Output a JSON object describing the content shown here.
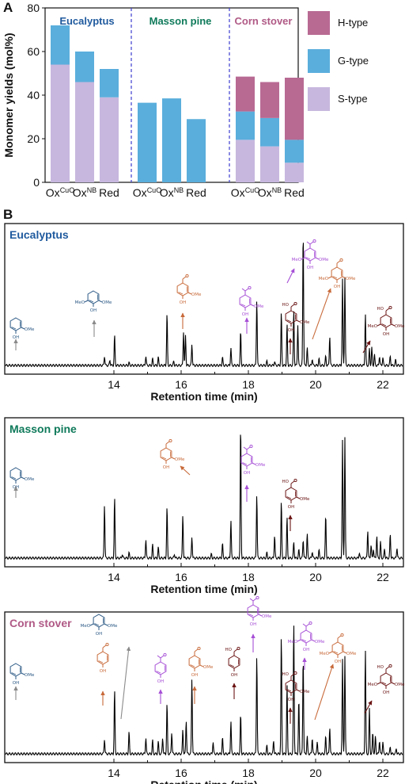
{
  "panel_labels": [
    "A",
    "B"
  ],
  "colors": {
    "H-type": "#b86a93",
    "G-type": "#5aaedc",
    "S-type": "#c7b7de",
    "Eucalyptus": "#1f5a9e",
    "Masson pine": "#0f7a5a",
    "Corn stover": "#b05a86",
    "divider": "#3d3dd0",
    "trace": "#000000",
    "ortho_blue": "#2d5a86",
    "vanillin_orange": "#c86a3a",
    "aceto_purple": "#a64fd6",
    "acid_darkred": "#6b1414",
    "arrow_gray": "#8a8a8a"
  },
  "chart_data": [
    {
      "type": "bar",
      "stacked": true,
      "ylabel": "Monomer yields (mol%)",
      "ylim": [
        0,
        80
      ],
      "yticks": [
        0,
        20,
        40,
        60,
        80
      ],
      "groups": [
        {
          "name": "Eucalyptus",
          "categories": [
            "Ox",
            "Ox",
            "Red"
          ],
          "cat_sup": [
            "CuO",
            "NB",
            ""
          ]
        },
        {
          "name": "Masson pine",
          "categories": [
            "Ox",
            "Ox",
            "Red"
          ],
          "cat_sup": [
            "CuO",
            "NB",
            ""
          ]
        },
        {
          "name": "Corn stover",
          "categories": [
            "Ox",
            "Ox",
            "Red"
          ],
          "cat_sup": [
            "CuO",
            "NB",
            ""
          ]
        }
      ],
      "series": [
        {
          "name": "S-type",
          "values": [
            [
              54,
              46,
              39
            ],
            [
              0,
              0,
              0
            ],
            [
              19.5,
              16.5,
              9
            ]
          ]
        },
        {
          "name": "G-type",
          "values": [
            [
              18,
              14,
              13
            ],
            [
              36.5,
              38.5,
              29
            ],
            [
              13,
              13,
              10.5
            ]
          ]
        },
        {
          "name": "H-type",
          "values": [
            [
              0,
              0,
              0
            ],
            [
              0,
              0,
              0
            ],
            [
              16,
              16.5,
              28.5
            ]
          ]
        }
      ],
      "legend": [
        "H-type",
        "G-type",
        "S-type"
      ],
      "legend_position": "right"
    },
    {
      "type": "line",
      "title": "Eucalyptus",
      "xlabel": "Retention time (min)",
      "xlim": [
        13.5,
        22.5
      ],
      "xticks": [
        14,
        16,
        18,
        20,
        22
      ],
      "peaks": [
        {
          "x": 13.72,
          "y": 0.07
        },
        {
          "x": 13.88,
          "y": 0.04
        },
        {
          "x": 14.02,
          "y": 0.22
        },
        {
          "x": 14.45,
          "y": 0.02
        },
        {
          "x": 14.95,
          "y": 0.07
        },
        {
          "x": 15.15,
          "y": 0.05
        },
        {
          "x": 15.32,
          "y": 0.06
        },
        {
          "x": 15.58,
          "y": 0.38
        },
        {
          "x": 15.78,
          "y": 0.03
        },
        {
          "x": 16.07,
          "y": 0.25
        },
        {
          "x": 16.13,
          "y": 0.22
        },
        {
          "x": 16.32,
          "y": 0.16
        },
        {
          "x": 17.23,
          "y": 0.06
        },
        {
          "x": 17.48,
          "y": 0.13
        },
        {
          "x": 17.77,
          "y": 0.25
        },
        {
          "x": 18.25,
          "y": 0.49
        },
        {
          "x": 18.55,
          "y": 0.03
        },
        {
          "x": 18.78,
          "y": 0.03
        },
        {
          "x": 18.98,
          "y": 0.39
        },
        {
          "x": 19.15,
          "y": 0.3
        },
        {
          "x": 19.35,
          "y": 0.41
        },
        {
          "x": 19.47,
          "y": 0.3
        },
        {
          "x": 19.63,
          "y": 1.0
        },
        {
          "x": 19.75,
          "y": 0.13
        },
        {
          "x": 19.9,
          "y": 0.05
        },
        {
          "x": 20.1,
          "y": 0.05
        },
        {
          "x": 20.3,
          "y": 0.07
        },
        {
          "x": 20.42,
          "y": 0.22
        },
        {
          "x": 20.8,
          "y": 0.63
        },
        {
          "x": 20.87,
          "y": 0.65
        },
        {
          "x": 21.48,
          "y": 0.38
        },
        {
          "x": 21.6,
          "y": 0.12
        },
        {
          "x": 21.67,
          "y": 0.13
        },
        {
          "x": 21.75,
          "y": 0.08
        },
        {
          "x": 21.9,
          "y": 0.07
        },
        {
          "x": 22.0,
          "y": 0.06
        },
        {
          "x": 22.22,
          "y": 0.07
        },
        {
          "x": 22.38,
          "y": 0.04
        }
      ]
    },
    {
      "type": "line",
      "title": "Masson pine",
      "xlabel": "Retention time (min)",
      "xlim": [
        13.5,
        22.5
      ],
      "xticks": [
        14,
        16,
        18,
        20,
        22
      ],
      "peaks": [
        {
          "x": 13.72,
          "y": 0.4
        },
        {
          "x": 14.02,
          "y": 0.45
        },
        {
          "x": 14.25,
          "y": 0.03
        },
        {
          "x": 14.45,
          "y": 0.04
        },
        {
          "x": 14.95,
          "y": 0.14
        },
        {
          "x": 15.15,
          "y": 0.1
        },
        {
          "x": 15.32,
          "y": 0.08
        },
        {
          "x": 15.58,
          "y": 0.38
        },
        {
          "x": 15.8,
          "y": 0.03
        },
        {
          "x": 16.05,
          "y": 0.32
        },
        {
          "x": 16.32,
          "y": 0.16
        },
        {
          "x": 16.9,
          "y": 0.03
        },
        {
          "x": 17.23,
          "y": 0.11
        },
        {
          "x": 17.48,
          "y": 0.28
        },
        {
          "x": 17.77,
          "y": 1.0
        },
        {
          "x": 18.25,
          "y": 0.48
        },
        {
          "x": 18.55,
          "y": 0.04
        },
        {
          "x": 18.78,
          "y": 0.17
        },
        {
          "x": 18.98,
          "y": 0.42
        },
        {
          "x": 19.15,
          "y": 0.3
        },
        {
          "x": 19.35,
          "y": 0.12
        },
        {
          "x": 19.5,
          "y": 0.06
        },
        {
          "x": 19.63,
          "y": 0.14
        },
        {
          "x": 19.75,
          "y": 0.18
        },
        {
          "x": 19.9,
          "y": 0.05
        },
        {
          "x": 20.1,
          "y": 0.06
        },
        {
          "x": 20.3,
          "y": 0.32
        },
        {
          "x": 20.8,
          "y": 0.87
        },
        {
          "x": 20.87,
          "y": 0.9
        },
        {
          "x": 21.3,
          "y": 0.04
        },
        {
          "x": 21.55,
          "y": 0.21
        },
        {
          "x": 21.65,
          "y": 0.1
        },
        {
          "x": 21.72,
          "y": 0.07
        },
        {
          "x": 21.82,
          "y": 0.17
        },
        {
          "x": 21.93,
          "y": 0.12
        },
        {
          "x": 22.05,
          "y": 0.07
        },
        {
          "x": 22.22,
          "y": 0.18
        },
        {
          "x": 22.42,
          "y": 0.08
        }
      ]
    },
    {
      "type": "line",
      "title": "Corn stover",
      "xlabel": "Retention time (min)",
      "xlim": [
        13.5,
        22.5
      ],
      "xticks": [
        14,
        16,
        18,
        20,
        22
      ],
      "peaks": [
        {
          "x": 13.72,
          "y": 0.11
        },
        {
          "x": 14.02,
          "y": 0.47
        },
        {
          "x": 14.45,
          "y": 0.16
        },
        {
          "x": 14.95,
          "y": 0.12
        },
        {
          "x": 15.15,
          "y": 0.1
        },
        {
          "x": 15.32,
          "y": 0.09
        },
        {
          "x": 15.45,
          "y": 0.12
        },
        {
          "x": 15.58,
          "y": 0.37
        },
        {
          "x": 15.72,
          "y": 0.16
        },
        {
          "x": 16.05,
          "y": 0.18
        },
        {
          "x": 16.15,
          "y": 0.25
        },
        {
          "x": 16.32,
          "y": 0.56
        },
        {
          "x": 16.95,
          "y": 0.09
        },
        {
          "x": 17.23,
          "y": 0.12
        },
        {
          "x": 17.48,
          "y": 0.24
        },
        {
          "x": 17.77,
          "y": 0.29
        },
        {
          "x": 18.25,
          "y": 0.73
        },
        {
          "x": 18.55,
          "y": 0.06
        },
        {
          "x": 18.75,
          "y": 0.1
        },
        {
          "x": 18.98,
          "y": 0.87
        },
        {
          "x": 19.15,
          "y": 0.51
        },
        {
          "x": 19.35,
          "y": 0.97
        },
        {
          "x": 19.5,
          "y": 0.4
        },
        {
          "x": 19.63,
          "y": 0.72
        },
        {
          "x": 19.75,
          "y": 0.13
        },
        {
          "x": 19.9,
          "y": 0.12
        },
        {
          "x": 20.05,
          "y": 0.09
        },
        {
          "x": 20.3,
          "y": 0.13
        },
        {
          "x": 20.42,
          "y": 0.2
        },
        {
          "x": 20.8,
          "y": 0.69
        },
        {
          "x": 20.87,
          "y": 0.72
        },
        {
          "x": 21.48,
          "y": 0.77
        },
        {
          "x": 21.6,
          "y": 0.33
        },
        {
          "x": 21.7,
          "y": 0.16
        },
        {
          "x": 21.78,
          "y": 0.13
        },
        {
          "x": 21.9,
          "y": 0.1
        },
        {
          "x": 22.0,
          "y": 0.09
        },
        {
          "x": 22.22,
          "y": 0.05
        },
        {
          "x": 22.4,
          "y": 0.04
        }
      ]
    }
  ],
  "chem": {
    "ome": "OMe",
    "meo": "MeO",
    "oh": "OH",
    "ho": "HO"
  }
}
